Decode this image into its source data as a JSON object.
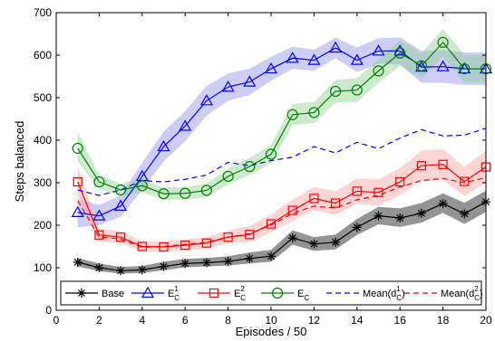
{
  "chart_data": {
    "type": "line",
    "xlabel": "Episodes / 50",
    "ylabel": "Steps balanced",
    "xlim": [
      0,
      20
    ],
    "ylim": [
      0,
      700
    ],
    "x_ticks": [
      0,
      2,
      4,
      6,
      8,
      10,
      12,
      14,
      16,
      18,
      20
    ],
    "y_ticks": [
      0,
      100,
      200,
      300,
      400,
      500,
      600,
      700
    ],
    "grid": false,
    "legend_position": "bottom",
    "x": [
      1,
      2,
      3,
      4,
      5,
      6,
      7,
      8,
      9,
      10,
      11,
      12,
      13,
      14,
      15,
      16,
      17,
      18,
      19,
      20
    ],
    "series": [
      {
        "name": "Base",
        "color": "#000000",
        "marker": "star",
        "line": "solid",
        "values": [
          113,
          100,
          93,
          95,
          103,
          110,
          112,
          115,
          122,
          127,
          170,
          156,
          160,
          195,
          222,
          217,
          228,
          251,
          227,
          255
        ],
        "band": [
          [
            103,
            123
          ],
          [
            92,
            110
          ],
          [
            86,
            102
          ],
          [
            88,
            104
          ],
          [
            94,
            114
          ],
          [
            101,
            121
          ],
          [
            103,
            123
          ],
          [
            105,
            127
          ],
          [
            110,
            136
          ],
          [
            114,
            142
          ],
          [
            154,
            188
          ],
          [
            140,
            172
          ],
          [
            143,
            178
          ],
          [
            177,
            215
          ],
          [
            202,
            243
          ],
          [
            196,
            240
          ],
          [
            206,
            252
          ],
          [
            229,
            275
          ],
          [
            203,
            253
          ],
          [
            231,
            281
          ]
        ]
      },
      {
        "name": "E_C^1",
        "color": "#0000ff",
        "band_color": "#8888ee",
        "marker": "triangle",
        "line": "solid",
        "values": [
          230,
          222,
          245,
          315,
          385,
          433,
          493,
          525,
          537,
          568,
          593,
          588,
          617,
          588,
          610,
          610,
          572,
          573,
          568,
          568
        ],
        "band": [
          [
            195,
            262
          ],
          [
            200,
            248
          ],
          [
            220,
            270
          ],
          [
            283,
            347
          ],
          [
            350,
            420
          ],
          [
            398,
            468
          ],
          [
            458,
            528
          ],
          [
            493,
            557
          ],
          [
            506,
            568
          ],
          [
            540,
            596
          ],
          [
            568,
            620
          ],
          [
            563,
            613
          ],
          [
            593,
            641
          ],
          [
            560,
            618
          ],
          [
            580,
            640
          ],
          [
            578,
            642
          ],
          [
            535,
            610
          ],
          [
            535,
            612
          ],
          [
            530,
            606
          ],
          [
            530,
            606
          ]
        ]
      },
      {
        "name": "E_C^2",
        "color": "#ff0000",
        "band_color": "#ff9999",
        "marker": "square",
        "line": "solid",
        "values": [
          302,
          177,
          172,
          150,
          149,
          153,
          158,
          172,
          178,
          203,
          235,
          263,
          252,
          280,
          277,
          302,
          340,
          343,
          303,
          337
        ],
        "band": [
          [
            270,
            340
          ],
          [
            162,
            192
          ],
          [
            158,
            186
          ],
          [
            138,
            162
          ],
          [
            137,
            162
          ],
          [
            140,
            167
          ],
          [
            145,
            172
          ],
          [
            158,
            188
          ],
          [
            160,
            198
          ],
          [
            183,
            225
          ],
          [
            210,
            260
          ],
          [
            236,
            290
          ],
          [
            224,
            280
          ],
          [
            250,
            310
          ],
          [
            246,
            308
          ],
          [
            270,
            334
          ],
          [
            305,
            375
          ],
          [
            307,
            379
          ],
          [
            268,
            338
          ],
          [
            300,
            374
          ]
        ]
      },
      {
        "name": "E_C",
        "color": "#008000",
        "band_color": "#88cc88",
        "marker": "circle",
        "line": "solid",
        "values": [
          381,
          302,
          283,
          293,
          274,
          275,
          282,
          315,
          338,
          367,
          460,
          465,
          515,
          518,
          563,
          605,
          575,
          630,
          568,
          568
        ],
        "band": [
          [
            350,
            420
          ],
          [
            285,
            318
          ],
          [
            268,
            298
          ],
          [
            278,
            308
          ],
          [
            259,
            289
          ],
          [
            260,
            290
          ],
          [
            266,
            298
          ],
          [
            296,
            334
          ],
          [
            318,
            358
          ],
          [
            345,
            389
          ],
          [
            435,
            485
          ],
          [
            440,
            490
          ],
          [
            488,
            542
          ],
          [
            490,
            546
          ],
          [
            535,
            591
          ],
          [
            575,
            635
          ],
          [
            545,
            605
          ],
          [
            598,
            662
          ],
          [
            535,
            601
          ],
          [
            535,
            601
          ]
        ]
      },
      {
        "name": "Mean(d_C^1)",
        "color": "#0000ff",
        "marker": "none",
        "line": "dashed",
        "values": [
          283,
          270,
          283,
          305,
          302,
          308,
          318,
          348,
          340,
          352,
          360,
          385,
          370,
          395,
          380,
          405,
          425,
          410,
          412,
          428
        ]
      },
      {
        "name": "Mean(d_C^2)",
        "color": "#ff0000",
        "marker": "none",
        "line": "dashed",
        "values": [
          258,
          172,
          168,
          148,
          150,
          155,
          160,
          172,
          180,
          200,
          228,
          245,
          240,
          260,
          270,
          290,
          305,
          310,
          300,
          312
        ]
      }
    ],
    "legend": [
      {
        "main": "Base",
        "sup": "",
        "sub": "",
        "suffix": ""
      },
      {
        "main": "E",
        "sup": "1",
        "sub": "C",
        "suffix": ""
      },
      {
        "main": "E",
        "sup": "2",
        "sub": "C",
        "suffix": ""
      },
      {
        "main": "E",
        "sup": "",
        "sub": "C",
        "suffix": ""
      },
      {
        "main": "Mean(d",
        "sup": "1",
        "sub": "C",
        "suffix": ")"
      },
      {
        "main": "Mean(d",
        "sup": "2",
        "sub": "C",
        "suffix": ")"
      }
    ]
  }
}
